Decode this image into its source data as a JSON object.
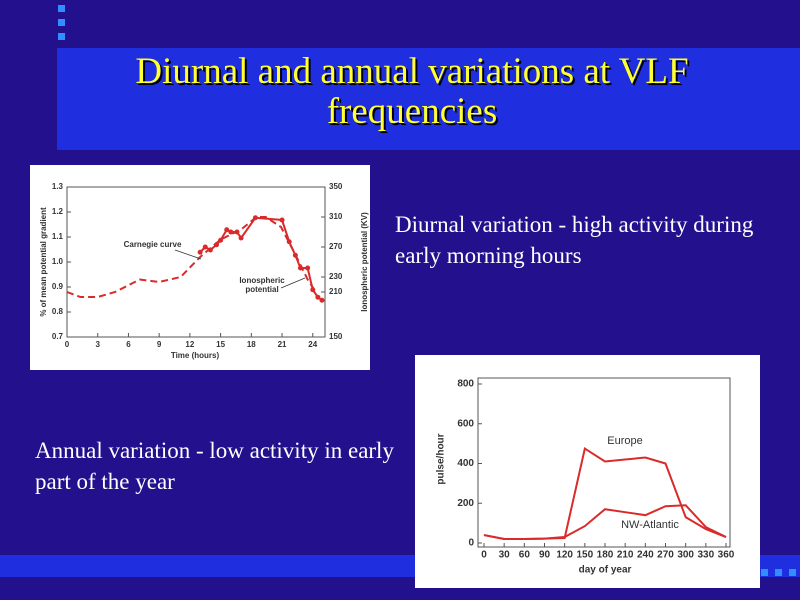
{
  "slide": {
    "title": "Diurnal and annual variations at VLF frequencies",
    "text_1": "Diurnal variation - high activity during early morning hours",
    "text_2": "Annual variation - low activity in early part of the year"
  },
  "chart_data": [
    {
      "type": "line",
      "xlabel": "Time (hours)",
      "ylabel": "% of mean potential gradient",
      "y2label": "Ionospheric potential (KV)",
      "xlim": [
        0,
        25
      ],
      "xticks": [
        0,
        3,
        6,
        9,
        12,
        15,
        18,
        21,
        24
      ],
      "ylim": [
        0.7,
        1.3
      ],
      "yticks": [
        0.7,
        0.8,
        0.9,
        {
          "value": 1,
          "label": "1.0"
        },
        1.1,
        1.2,
        1.3
      ],
      "y2lim": [
        150,
        350
      ],
      "y2ticks": [
        150,
        210,
        230,
        270,
        310,
        350
      ],
      "annotations": [
        "Carnegie curve",
        "Ionospheric potential"
      ],
      "series": [
        {
          "name": "Carnegie curve",
          "color": "#d92b2b",
          "style": "dashed",
          "markers": false,
          "x": [
            0,
            1.3,
            3,
            4.7,
            7.1,
            9,
            11.1,
            13,
            15,
            17,
            18.5,
            19.4,
            20.9,
            22.3,
            23.5,
            24.3
          ],
          "values": [
            0.88,
            0.86,
            0.86,
            0.88,
            0.93,
            0.92,
            0.94,
            1.02,
            1.09,
            1.13,
            1.18,
            1.18,
            1.14,
            1.03,
            0.93,
            0.88
          ]
        },
        {
          "name": "Ionospheric potential",
          "color": "#d92b2b",
          "style": "solid",
          "markers": true,
          "axis": "y2",
          "x": [
            13,
            13.5,
            14,
            14.6,
            15,
            15.6,
            16,
            16.6,
            17,
            18.4,
            21,
            21.7,
            22.3,
            22.8,
            23.5,
            24,
            24.5,
            24.9
          ],
          "values": [
            263,
            270,
            266,
            273,
            279,
            293,
            290,
            290,
            282,
            309,
            306,
            277,
            259,
            242,
            242,
            213,
            203,
            199
          ]
        }
      ]
    },
    {
      "type": "line",
      "xlabel": "day of year",
      "ylabel": "pulse/hour",
      "x": [
        0,
        30,
        60,
        90,
        120,
        150,
        180,
        210,
        240,
        270,
        300,
        330,
        360
      ],
      "xlim": [
        0,
        360
      ],
      "xticks": [
        0,
        30,
        60,
        90,
        120,
        150,
        180,
        210,
        240,
        270,
        300,
        330,
        360
      ],
      "ylim": [
        0,
        800
      ],
      "yticks": [
        0,
        200,
        400,
        600,
        800
      ],
      "series": [
        {
          "name": "Europe",
          "color": "#d92b2b",
          "values": [
            40,
            20,
            20,
            22,
            25,
            475,
            410,
            420,
            430,
            400,
            130,
            70,
            30
          ]
        },
        {
          "name": "NW-Atlantic",
          "color": "#d92b2b",
          "values": [
            40,
            20,
            20,
            22,
            30,
            85,
            170,
            155,
            140,
            185,
            190,
            80,
            30
          ]
        }
      ]
    }
  ]
}
